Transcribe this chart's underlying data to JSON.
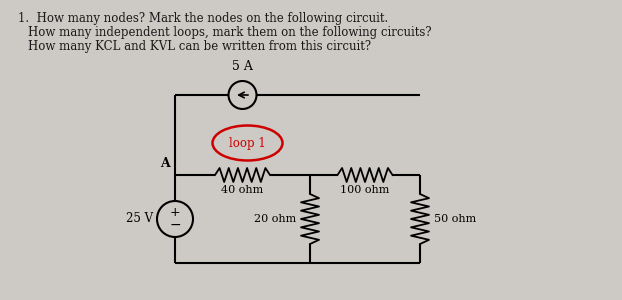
{
  "bg_color": "#cdc9c4",
  "text_color": "#1a1a1a",
  "title_lines": [
    "1.  How many nodes? Mark the nodes on the following circuit.",
    "     How many independent loops, mark them on the following circuits?",
    "     How many KCL and KVL can be written from this circuit?"
  ],
  "circuit": {
    "node_A_label": "A",
    "v_source_label": "25 V",
    "i_source_label": "5 A",
    "r1_label": "40 ohm",
    "r2_label": "20 ohm",
    "r3_label": "100 ohm",
    "r4_label": "50 ohm",
    "loop_label": "loop 1"
  },
  "loop_color": "#cc0000",
  "wire_color": "#000000"
}
